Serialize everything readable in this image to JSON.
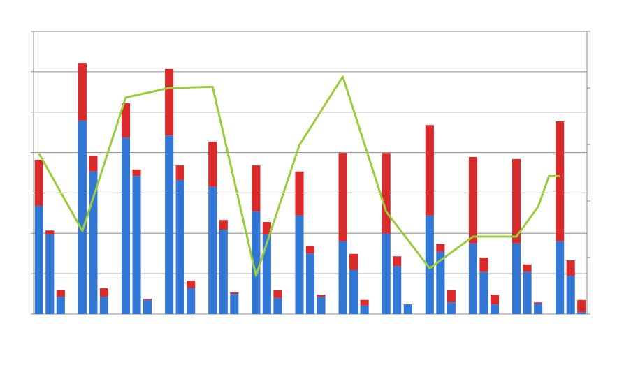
{
  "chart_data": {
    "type": "bar",
    "stacked": true,
    "categories": [
      null,
      null,
      null,
      null,
      null,
      null,
      null,
      null,
      null,
      null,
      null,
      null,
      null,
      null,
      null,
      null,
      null,
      null,
      null,
      null,
      null,
      null,
      null,
      null,
      null,
      null,
      null,
      null,
      null,
      null,
      null,
      null,
      null,
      null,
      null,
      null,
      null,
      null,
      null,
      null,
      null,
      null,
      null,
      null,
      null,
      null,
      null,
      null,
      null,
      null,
      null
    ],
    "series": [
      {
        "color": "#3277d3",
        "values": [
          2.68,
          1.97,
          0.43,
          null,
          4.79,
          3.53,
          0.43,
          null,
          4.37,
          3.42,
          0.35,
          null,
          4.42,
          3.32,
          0.64,
          null,
          3.15,
          2.09,
          0.5,
          null,
          2.54,
          1.97,
          0.4,
          null,
          2.44,
          1.5,
          0.43,
          null,
          1.8,
          1.09,
          0.21,
          null,
          1.99,
          1.19,
          0.24,
          null,
          2.44,
          1.54,
          0.29,
          null,
          1.75,
          1.04,
          0.24,
          null,
          1.75,
          1.04,
          0.26,
          null,
          1.8,
          0.95,
          0.05
        ]
      },
      {
        "color": "#d92b2b",
        "values": [
          1.14,
          0.1,
          0.16,
          null,
          1.43,
          0.39,
          0.21,
          null,
          0.85,
          0.16,
          0.03,
          null,
          1.65,
          0.36,
          0.19,
          null,
          1.12,
          0.24,
          0.04,
          null,
          1.14,
          0.31,
          0.19,
          null,
          1.09,
          0.19,
          0.05,
          null,
          2.19,
          0.4,
          0.14,
          null,
          2.0,
          0.24,
          0,
          null,
          2.24,
          0.19,
          0.3,
          null,
          2.14,
          0.36,
          0.24,
          null,
          2.09,
          0.19,
          0.03,
          null,
          2.97,
          0.38,
          0.3
        ]
      },
      {
        "type": "line",
        "axis": "y2",
        "color": "#9acd3a",
        "x": [
          0,
          4,
          8,
          12,
          16,
          20,
          24,
          28,
          32,
          36,
          40,
          44,
          46,
          47,
          48
        ],
        "values": [
          2.84,
          1.47,
          3.83,
          4.0,
          4.02,
          0.68,
          2.99,
          4.2,
          1.81,
          0.81,
          1.37,
          1.37,
          1.9,
          2.44,
          2.44
        ]
      }
    ],
    "ylim": [
      0,
      7
    ],
    "yticks": [
      0,
      1,
      2,
      3,
      4,
      5,
      6,
      7
    ],
    "y2lim": [
      0,
      5
    ],
    "y2ticks": [
      0,
      1,
      2,
      3,
      4,
      5
    ],
    "grid": true
  }
}
